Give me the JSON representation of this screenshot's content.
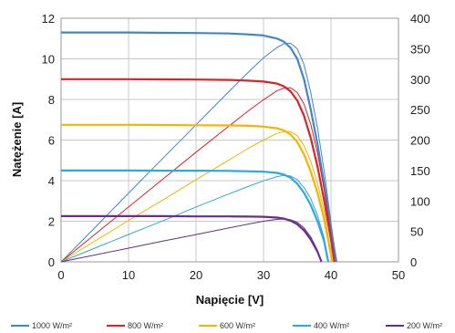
{
  "chart_data": {
    "type": "line",
    "xlabel": "Napięcie [V]",
    "ylabel": "Natężenie [A]",
    "xlim": [
      0,
      50
    ],
    "ylim": [
      0,
      12
    ],
    "y2lim": [
      0,
      400
    ],
    "x_ticks": [
      0,
      10,
      20,
      30,
      40,
      50
    ],
    "y_ticks": [
      0,
      2,
      4,
      6,
      8,
      10,
      12
    ],
    "y2_ticks": [
      0,
      50,
      100,
      150,
      200,
      250,
      300,
      350,
      400
    ],
    "grid": true,
    "legend_position": "bottom",
    "series": [
      {
        "name": "1000 W/m²",
        "color": "#3f86c8",
        "current": [
          [
            0,
            11.3
          ],
          [
            5,
            11.3
          ],
          [
            10,
            11.3
          ],
          [
            15,
            11.28
          ],
          [
            20,
            11.27
          ],
          [
            25,
            11.25
          ],
          [
            28,
            11.2
          ],
          [
            30,
            11.15
          ],
          [
            32,
            11.0
          ],
          [
            33,
            10.85
          ],
          [
            34,
            10.55
          ],
          [
            35,
            10.0
          ],
          [
            36,
            9.0
          ],
          [
            37,
            7.5
          ],
          [
            38,
            5.8
          ],
          [
            39,
            3.8
          ],
          [
            40,
            1.6
          ],
          [
            40.8,
            0
          ]
        ],
        "power": [
          [
            0,
            0
          ],
          [
            5,
            56
          ],
          [
            10,
            113
          ],
          [
            15,
            169
          ],
          [
            20,
            225
          ],
          [
            25,
            281
          ],
          [
            28,
            314
          ],
          [
            30,
            335
          ],
          [
            32,
            352
          ],
          [
            33,
            358
          ],
          [
            34,
            359
          ],
          [
            35,
            350
          ],
          [
            36,
            324
          ],
          [
            37,
            278
          ],
          [
            38,
            220
          ],
          [
            39,
            148
          ],
          [
            40,
            64
          ],
          [
            40.8,
            0
          ]
        ]
      },
      {
        "name": "800 W/m²",
        "color": "#d8232a",
        "current": [
          [
            0,
            9.0
          ],
          [
            5,
            9.0
          ],
          [
            10,
            9.0
          ],
          [
            15,
            8.99
          ],
          [
            20,
            8.98
          ],
          [
            25,
            8.96
          ],
          [
            28,
            8.92
          ],
          [
            30,
            8.88
          ],
          [
            32,
            8.78
          ],
          [
            33,
            8.65
          ],
          [
            34,
            8.4
          ],
          [
            35,
            7.95
          ],
          [
            36,
            7.2
          ],
          [
            37,
            6.1
          ],
          [
            38,
            4.7
          ],
          [
            39,
            3.0
          ],
          [
            40,
            1.1
          ],
          [
            40.5,
            0
          ]
        ],
        "power": [
          [
            0,
            0
          ],
          [
            5,
            45
          ],
          [
            10,
            90
          ],
          [
            15,
            135
          ],
          [
            20,
            180
          ],
          [
            25,
            224
          ],
          [
            28,
            250
          ],
          [
            30,
            266
          ],
          [
            32,
            281
          ],
          [
            33,
            285
          ],
          [
            34,
            286
          ],
          [
            35,
            278
          ],
          [
            36,
            259
          ],
          [
            37,
            226
          ],
          [
            38,
            179
          ],
          [
            39,
            117
          ],
          [
            40,
            44
          ],
          [
            40.5,
            0
          ]
        ]
      },
      {
        "name": "600 W/m²",
        "color": "#f2b500",
        "current": [
          [
            0,
            6.75
          ],
          [
            5,
            6.75
          ],
          [
            10,
            6.75
          ],
          [
            15,
            6.74
          ],
          [
            20,
            6.73
          ],
          [
            25,
            6.72
          ],
          [
            28,
            6.7
          ],
          [
            30,
            6.66
          ],
          [
            32,
            6.58
          ],
          [
            33,
            6.48
          ],
          [
            34,
            6.28
          ],
          [
            35,
            5.9
          ],
          [
            36,
            5.3
          ],
          [
            37,
            4.45
          ],
          [
            38,
            3.4
          ],
          [
            39,
            2.1
          ],
          [
            39.8,
            0.7
          ],
          [
            40.2,
            0
          ]
        ],
        "power": [
          [
            0,
            0
          ],
          [
            5,
            34
          ],
          [
            10,
            68
          ],
          [
            15,
            101
          ],
          [
            20,
            135
          ],
          [
            25,
            168
          ],
          [
            28,
            188
          ],
          [
            30,
            200
          ],
          [
            32,
            211
          ],
          [
            33,
            214
          ],
          [
            34,
            214
          ],
          [
            35,
            207
          ],
          [
            36,
            191
          ],
          [
            37,
            165
          ],
          [
            38,
            129
          ],
          [
            39,
            82
          ],
          [
            39.8,
            28
          ],
          [
            40.2,
            0
          ]
        ]
      },
      {
        "name": "400 W/m²",
        "color": "#2ea8df",
        "current": [
          [
            0,
            4.5
          ],
          [
            5,
            4.5
          ],
          [
            10,
            4.5
          ],
          [
            15,
            4.49
          ],
          [
            20,
            4.49
          ],
          [
            25,
            4.48
          ],
          [
            28,
            4.46
          ],
          [
            30,
            4.44
          ],
          [
            32,
            4.38
          ],
          [
            33,
            4.3
          ],
          [
            34,
            4.15
          ],
          [
            35,
            3.85
          ],
          [
            36,
            3.4
          ],
          [
            37,
            2.8
          ],
          [
            38,
            2.0
          ],
          [
            39,
            1.0
          ],
          [
            39.6,
            0
          ]
        ],
        "power": [
          [
            0,
            0
          ],
          [
            5,
            22.5
          ],
          [
            10,
            45
          ],
          [
            15,
            67
          ],
          [
            20,
            90
          ],
          [
            25,
            112
          ],
          [
            28,
            125
          ],
          [
            30,
            133
          ],
          [
            32,
            140
          ],
          [
            33,
            142
          ],
          [
            34,
            141
          ],
          [
            35,
            135
          ],
          [
            36,
            122
          ],
          [
            37,
            104
          ],
          [
            38,
            76
          ],
          [
            39,
            39
          ],
          [
            39.6,
            0
          ]
        ]
      },
      {
        "name": "200 W/m²",
        "color": "#6a2d8a",
        "current": [
          [
            0,
            2.25
          ],
          [
            5,
            2.25
          ],
          [
            10,
            2.25
          ],
          [
            15,
            2.25
          ],
          [
            20,
            2.24
          ],
          [
            25,
            2.24
          ],
          [
            28,
            2.23
          ],
          [
            30,
            2.22
          ],
          [
            32,
            2.18
          ],
          [
            33,
            2.13
          ],
          [
            34,
            2.03
          ],
          [
            35,
            1.85
          ],
          [
            36,
            1.55
          ],
          [
            37,
            1.1
          ],
          [
            38,
            0.5
          ],
          [
            38.6,
            0
          ]
        ],
        "power": [
          [
            0,
            0
          ],
          [
            5,
            11.3
          ],
          [
            10,
            22.5
          ],
          [
            15,
            33.8
          ],
          [
            20,
            44.8
          ],
          [
            25,
            56
          ],
          [
            28,
            62.4
          ],
          [
            30,
            66.6
          ],
          [
            32,
            69.8
          ],
          [
            33,
            70.3
          ],
          [
            34,
            69
          ],
          [
            35,
            64.8
          ],
          [
            36,
            55.8
          ],
          [
            37,
            40.7
          ],
          [
            38,
            19
          ],
          [
            38.6,
            0
          ]
        ]
      }
    ]
  }
}
